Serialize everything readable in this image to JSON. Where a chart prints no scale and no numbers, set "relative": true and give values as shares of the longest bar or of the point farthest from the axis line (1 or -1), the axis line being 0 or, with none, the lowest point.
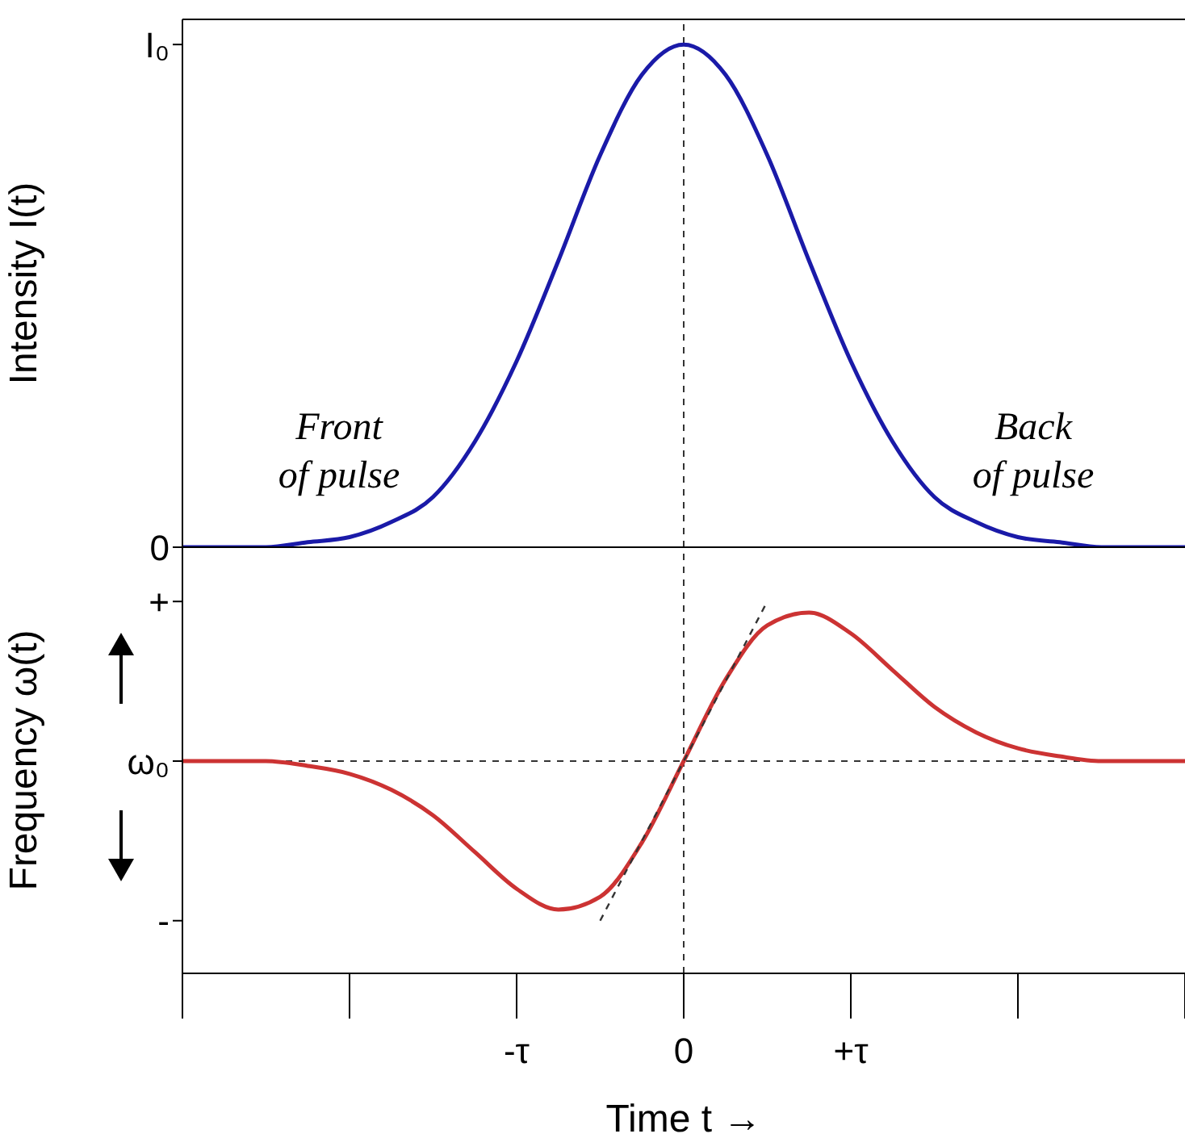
{
  "chart_data": [
    {
      "type": "line",
      "ylabel": "Intensity I(t)",
      "relative": true,
      "categories": [
        null,
        null,
        null,
        null,
        null,
        null,
        null,
        null,
        null,
        null,
        null,
        null,
        null,
        null,
        null,
        null,
        null,
        null,
        null,
        null,
        null,
        null,
        null,
        null,
        null
      ],
      "series": [
        {
          "color": "#1a1aa8",
          "values": [
            0,
            0,
            0,
            0.01,
            0.02,
            0.05,
            0.1,
            0.21,
            0.37,
            0.57,
            0.78,
            0.94,
            1,
            0.94,
            0.78,
            0.57,
            0.37,
            0.21,
            0.1,
            0.05,
            0.02,
            0.01,
            0,
            0,
            0
          ]
        }
      ],
      "marker": "none",
      "annotations": [
        "I₀",
        "0",
        "Front of pulse",
        "Back of pulse"
      ]
    },
    {
      "type": "line",
      "ylabel": "Frequency ω(t)",
      "xlabel": "Time t →",
      "relative": true,
      "categories": [
        null,
        null,
        null,
        null,
        null,
        null,
        null,
        null,
        "-τ",
        null,
        null,
        null,
        "0",
        null,
        null,
        null,
        "+τ",
        null,
        null,
        null,
        null,
        null,
        null,
        null,
        null
      ],
      "series": [
        {
          "color": "#cc3333",
          "values": [
            0,
            0,
            0,
            -0.03,
            -0.08,
            -0.18,
            -0.34,
            -0.57,
            -0.8,
            -0.93,
            -0.85,
            -0.51,
            0,
            0.51,
            0.85,
            0.93,
            0.8,
            0.57,
            0.34,
            0.18,
            0.08,
            0.03,
            0,
            0,
            0
          ]
        },
        {
          "type": "line",
          "color": "#333333",
          "line_style": "dashed",
          "values": [
            null,
            null,
            null,
            null,
            null,
            null,
            null,
            null,
            null,
            null,
            -1,
            -0.5,
            0,
            0.5,
            1,
            null,
            null,
            null,
            null,
            null,
            null,
            null,
            null,
            null,
            null
          ]
        }
      ],
      "marker": "none",
      "ref_lines": [
        {
          "axis": "x",
          "value": "0",
          "color": "#333333",
          "line_style": "dashed"
        },
        {
          "axis": "y",
          "value": 0,
          "color": "#333333",
          "line_style": "dashed"
        }
      ],
      "annotations": [
        "+",
        "ω₀",
        "-"
      ]
    }
  ]
}
